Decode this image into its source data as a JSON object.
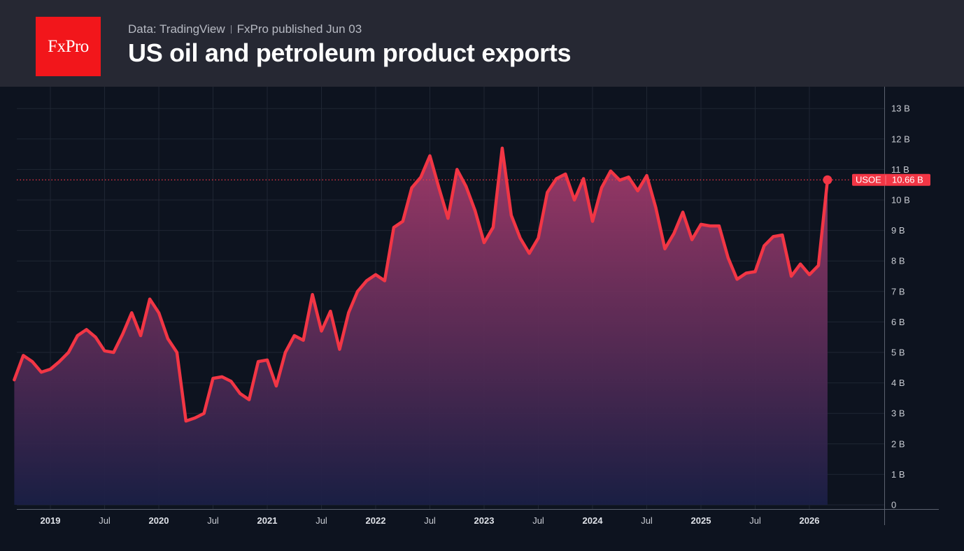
{
  "header": {
    "logo_text": "FxPro",
    "source": "Data: TradingView",
    "published": "FxPro published Jun 03",
    "title": "US oil and petroleum product exports"
  },
  "colors": {
    "line": "#f23645",
    "fill_top": "#a43a6a",
    "fill_bottom": "#1a1f45",
    "badge": "#f23645",
    "logo_bg": "#f2161b"
  },
  "chart_data": {
    "type": "area",
    "title": "US oil and petroleum product exports",
    "ylim": [
      0,
      13
    ],
    "y_ticks": [
      {
        "value": 0,
        "label": "0"
      },
      {
        "value": 1,
        "label": "1 B"
      },
      {
        "value": 2,
        "label": "2 B"
      },
      {
        "value": 3,
        "label": "3 B"
      },
      {
        "value": 4,
        "label": "4 B"
      },
      {
        "value": 5,
        "label": "5 B"
      },
      {
        "value": 6,
        "label": "6 B"
      },
      {
        "value": 7,
        "label": "7 B"
      },
      {
        "value": 8,
        "label": "8 B"
      },
      {
        "value": 9,
        "label": "9 B"
      },
      {
        "value": 10,
        "label": "10 B"
      },
      {
        "value": 11,
        "label": "11 B"
      },
      {
        "value": 12,
        "label": "12 B"
      },
      {
        "value": 13,
        "label": "13 B"
      }
    ],
    "x_ticks": [
      {
        "t": 2019.0,
        "label": "2019",
        "year": true
      },
      {
        "t": 2019.5,
        "label": "Jul",
        "year": false
      },
      {
        "t": 2020.0,
        "label": "2020",
        "year": true
      },
      {
        "t": 2020.5,
        "label": "Jul",
        "year": false
      },
      {
        "t": 2021.0,
        "label": "2021",
        "year": true
      },
      {
        "t": 2021.5,
        "label": "Jul",
        "year": false
      },
      {
        "t": 2022.0,
        "label": "2022",
        "year": true
      },
      {
        "t": 2022.5,
        "label": "Jul",
        "year": false
      },
      {
        "t": 2023.0,
        "label": "2023",
        "year": true
      },
      {
        "t": 2023.5,
        "label": "Jul",
        "year": false
      },
      {
        "t": 2024.0,
        "label": "2024",
        "year": true
      },
      {
        "t": 2024.5,
        "label": "Jul",
        "year": false
      },
      {
        "t": 2025.0,
        "label": "2025",
        "year": true
      },
      {
        "t": 2025.5,
        "label": "Jul",
        "year": false
      },
      {
        "t": 2026.0,
        "label": "2026",
        "year": true
      }
    ],
    "series": [
      {
        "symbol": "USOE",
        "last_label": "10.66 B",
        "last_value": 10.66,
        "points": [
          [
            2018.667,
            4.1
          ],
          [
            2018.75,
            4.9
          ],
          [
            2018.833,
            4.7
          ],
          [
            2018.917,
            4.35
          ],
          [
            2019.0,
            4.45
          ],
          [
            2019.083,
            4.7
          ],
          [
            2019.167,
            5.0
          ],
          [
            2019.25,
            5.55
          ],
          [
            2019.333,
            5.75
          ],
          [
            2019.417,
            5.5
          ],
          [
            2019.5,
            5.05
          ],
          [
            2019.583,
            5.0
          ],
          [
            2019.667,
            5.6
          ],
          [
            2019.75,
            6.3
          ],
          [
            2019.833,
            5.55
          ],
          [
            2019.917,
            6.75
          ],
          [
            2020.0,
            6.3
          ],
          [
            2020.083,
            5.45
          ],
          [
            2020.167,
            5.0
          ],
          [
            2020.25,
            2.75
          ],
          [
            2020.333,
            2.85
          ],
          [
            2020.417,
            3.0
          ],
          [
            2020.5,
            4.15
          ],
          [
            2020.583,
            4.2
          ],
          [
            2020.667,
            4.05
          ],
          [
            2020.75,
            3.65
          ],
          [
            2020.833,
            3.45
          ],
          [
            2020.917,
            4.7
          ],
          [
            2021.0,
            4.75
          ],
          [
            2021.083,
            3.9
          ],
          [
            2021.167,
            5.0
          ],
          [
            2021.25,
            5.55
          ],
          [
            2021.333,
            5.4
          ],
          [
            2021.417,
            6.9
          ],
          [
            2021.5,
            5.7
          ],
          [
            2021.583,
            6.35
          ],
          [
            2021.667,
            5.1
          ],
          [
            2021.75,
            6.3
          ],
          [
            2021.833,
            7.0
          ],
          [
            2021.917,
            7.35
          ],
          [
            2022.0,
            7.55
          ],
          [
            2022.083,
            7.35
          ],
          [
            2022.167,
            9.1
          ],
          [
            2022.25,
            9.3
          ],
          [
            2022.333,
            10.4
          ],
          [
            2022.417,
            10.75
          ],
          [
            2022.5,
            11.45
          ],
          [
            2022.583,
            10.4
          ],
          [
            2022.667,
            9.4
          ],
          [
            2022.75,
            11.0
          ],
          [
            2022.833,
            10.45
          ],
          [
            2022.917,
            9.65
          ],
          [
            2023.0,
            8.6
          ],
          [
            2023.083,
            9.1
          ],
          [
            2023.167,
            11.7
          ],
          [
            2023.25,
            9.5
          ],
          [
            2023.333,
            8.75
          ],
          [
            2023.417,
            8.25
          ],
          [
            2023.5,
            8.75
          ],
          [
            2023.583,
            10.25
          ],
          [
            2023.667,
            10.7
          ],
          [
            2023.75,
            10.85
          ],
          [
            2023.833,
            10.0
          ],
          [
            2023.917,
            10.7
          ],
          [
            2024.0,
            9.3
          ],
          [
            2024.083,
            10.4
          ],
          [
            2024.167,
            10.95
          ],
          [
            2024.25,
            10.65
          ],
          [
            2024.333,
            10.75
          ],
          [
            2024.417,
            10.3
          ],
          [
            2024.5,
            10.8
          ],
          [
            2024.583,
            9.75
          ],
          [
            2024.667,
            8.4
          ],
          [
            2024.75,
            8.9
          ],
          [
            2024.833,
            9.6
          ],
          [
            2024.917,
            8.7
          ],
          [
            2025.0,
            9.2
          ],
          [
            2025.083,
            9.15
          ],
          [
            2025.167,
            9.15
          ],
          [
            2025.25,
            8.1
          ],
          [
            2025.333,
            7.4
          ],
          [
            2025.417,
            7.6
          ],
          [
            2025.5,
            7.65
          ],
          [
            2025.583,
            8.5
          ],
          [
            2025.667,
            8.8
          ],
          [
            2025.75,
            8.85
          ],
          [
            2025.833,
            7.5
          ],
          [
            2025.917,
            7.9
          ],
          [
            2026.0,
            7.55
          ],
          [
            2026.083,
            7.85
          ],
          [
            2026.167,
            10.66
          ]
        ]
      }
    ]
  }
}
